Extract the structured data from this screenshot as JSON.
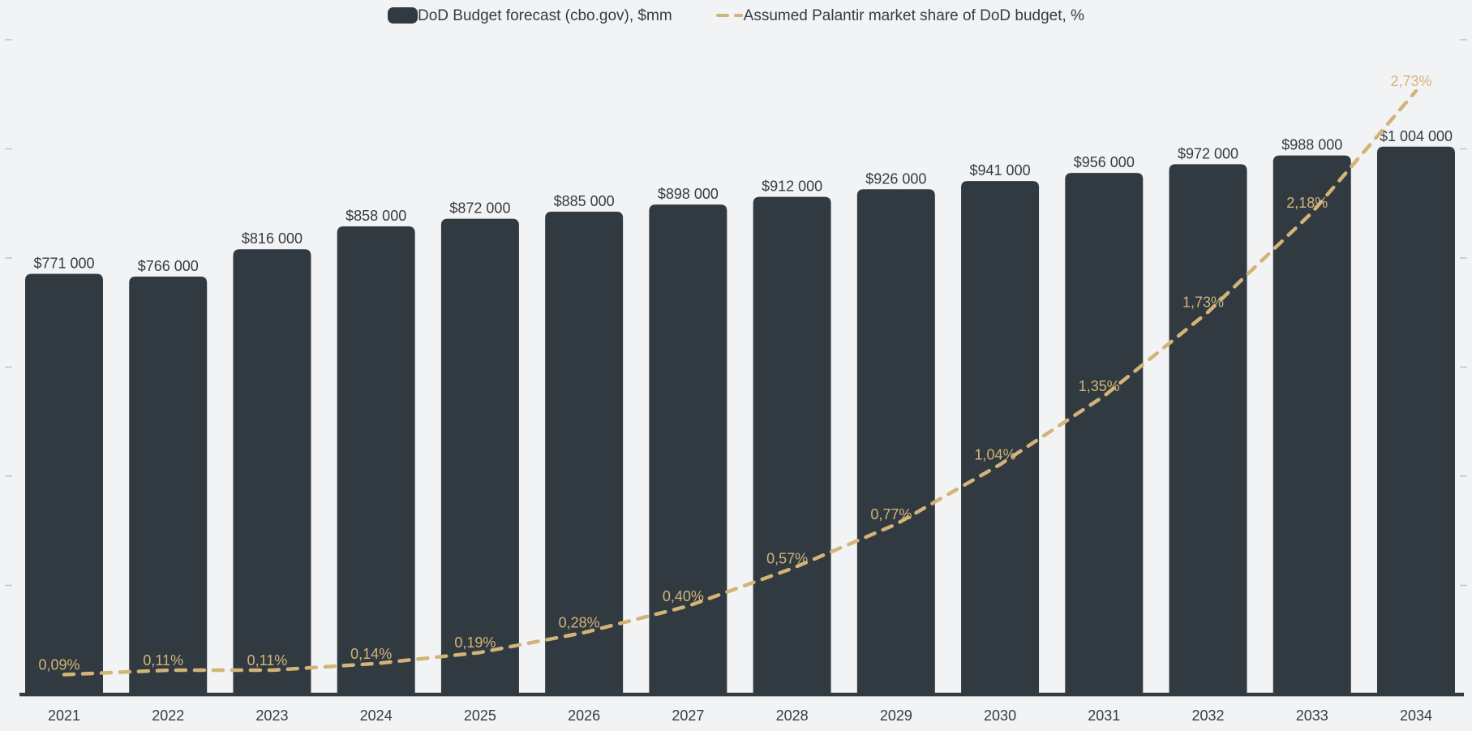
{
  "page": {
    "background": "#f2f3f5"
  },
  "colors": {
    "bar": "#313a41",
    "line": "#d3b478",
    "text_dark": "#333c43",
    "label_tan": "#d3b478",
    "axis": "#313a41",
    "tick": "#bfc3c9",
    "background": "#f2f3f5"
  },
  "legend": {
    "items": [
      {
        "label": "DoD Budget forecast (cbo.gov), $mm",
        "marker": "bar-swatch"
      },
      {
        "label": "Assumed Palantir market share of DoD budget, %",
        "marker": "dashed-line"
      }
    ]
  },
  "chart_data": {
    "type": "combo-bar-line",
    "title": "",
    "categories": [
      "2021",
      "2022",
      "2023",
      "2024",
      "2025",
      "2026",
      "2027",
      "2028",
      "2029",
      "2030",
      "2031",
      "2032",
      "2033",
      "2034"
    ],
    "series": [
      {
        "name": "DoD Budget forecast (cbo.gov), $mm",
        "type": "bar",
        "axis": "left",
        "unit": "$mm",
        "values": [
          771000,
          766000,
          816000,
          858000,
          872000,
          885000,
          898000,
          912000,
          926000,
          941000,
          956000,
          972000,
          988000,
          1004000
        ],
        "data_labels": [
          "$771 000",
          "$766 000",
          "$816 000",
          "$858 000",
          "$872 000",
          "$885 000",
          "$898 000",
          "$912 000",
          "$926 000",
          "$941 000",
          "$956 000",
          "$972 000",
          "$988 000",
          "$1 004 000"
        ]
      },
      {
        "name": "Assumed Palantir market share of DoD budget, %",
        "type": "line",
        "axis": "right",
        "unit": "%",
        "dashed": true,
        "values": [
          0.09,
          0.11,
          0.11,
          0.14,
          0.19,
          0.28,
          0.4,
          0.57,
          0.77,
          1.04,
          1.35,
          1.73,
          2.18,
          2.73
        ],
        "data_labels": [
          "0,09%",
          "0,11%",
          "0,11%",
          "0,14%",
          "0,19%",
          "0,28%",
          "0,40%",
          "0,57%",
          "0,77%",
          "1,04%",
          "1,35%",
          "1,73%",
          "2,18%",
          "2,73%"
        ]
      }
    ],
    "left_axis": {
      "min": 0,
      "max": 1200000,
      "tick_step": 200000,
      "tick_labels_visible": false
    },
    "right_axis": {
      "min": 0,
      "max": 2.96,
      "tick_labels_visible": false
    },
    "grid": "edge-ticks-only",
    "legend_position": "top-center"
  }
}
